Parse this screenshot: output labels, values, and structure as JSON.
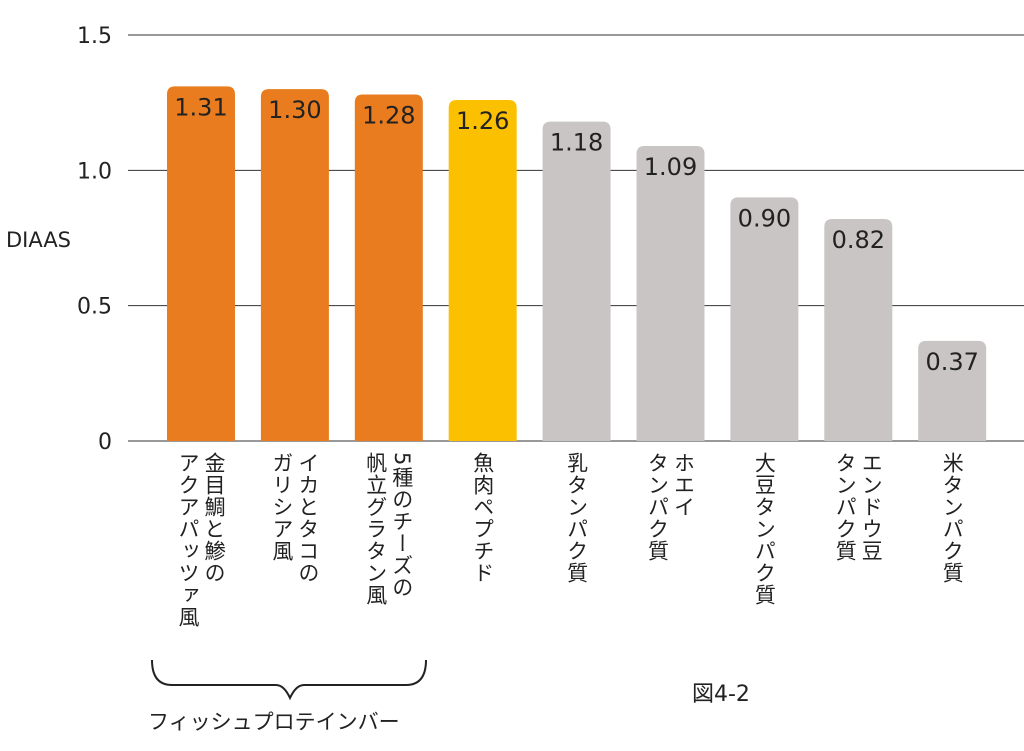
{
  "chart_data": {
    "type": "bar",
    "ylabel": "DIAAS",
    "ylim": [
      0,
      1.5
    ],
    "yticks": [
      0,
      0.5,
      1.0,
      1.5
    ],
    "ytick_labels": [
      "0",
      "0.5",
      "1.0",
      "1.5"
    ],
    "grid": true,
    "categories": [
      "金目鯛と鯵の\nアクアパッツァ風",
      "イカとタコの\nガリシア風",
      "5種のチーズの\n帆立グラタン風",
      "魚肉ペプチド",
      "乳タンパク質",
      "ホエイ\nタンパク質",
      "大豆タンパク質",
      "エンドウ豆\nタンパク質",
      "米タンパク質"
    ],
    "values": [
      1.31,
      1.3,
      1.28,
      1.26,
      1.18,
      1.09,
      0.9,
      0.82,
      0.37
    ],
    "value_labels": [
      "1.31",
      "1.30",
      "1.28",
      "1.26",
      "1.18",
      "1.09",
      "0.90",
      "0.82",
      "0.37"
    ],
    "colors": [
      "#E87C1E",
      "#E87C1E",
      "#E87C1E",
      "#FBC100",
      "#C9C5C4",
      "#C9C5C4",
      "#C9C5C4",
      "#C9C5C4",
      "#C9C5C4"
    ],
    "group_label": "フィッシュプロテインバー",
    "figure_label": "図4-2"
  }
}
